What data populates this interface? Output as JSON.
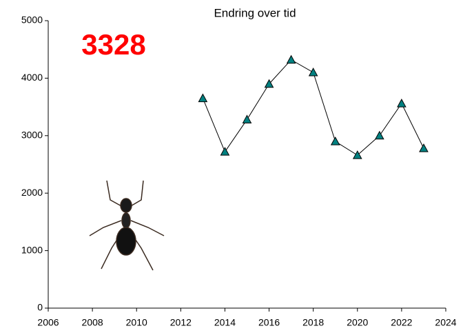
{
  "chart_data": {
    "type": "line",
    "title": "Endring over tid",
    "annotation": "3328",
    "x": [
      2013,
      2014,
      2015,
      2016,
      2017,
      2018,
      2019,
      2020,
      2021,
      2022,
      2023
    ],
    "values": [
      3650,
      2720,
      3280,
      3900,
      4320,
      4100,
      2900,
      2660,
      3000,
      3560,
      2780
    ],
    "color": "#008080",
    "line_color": "#000000",
    "marker": "triangle",
    "xlim": [
      2006,
      2024
    ],
    "xticks": [
      2006,
      2008,
      2010,
      2012,
      2014,
      2016,
      2018,
      2020,
      2022,
      2024
    ],
    "ylim": [
      0,
      5000
    ],
    "yticks": [
      0,
      1000,
      2000,
      3000,
      4000,
      5000
    ],
    "grid": false
  }
}
